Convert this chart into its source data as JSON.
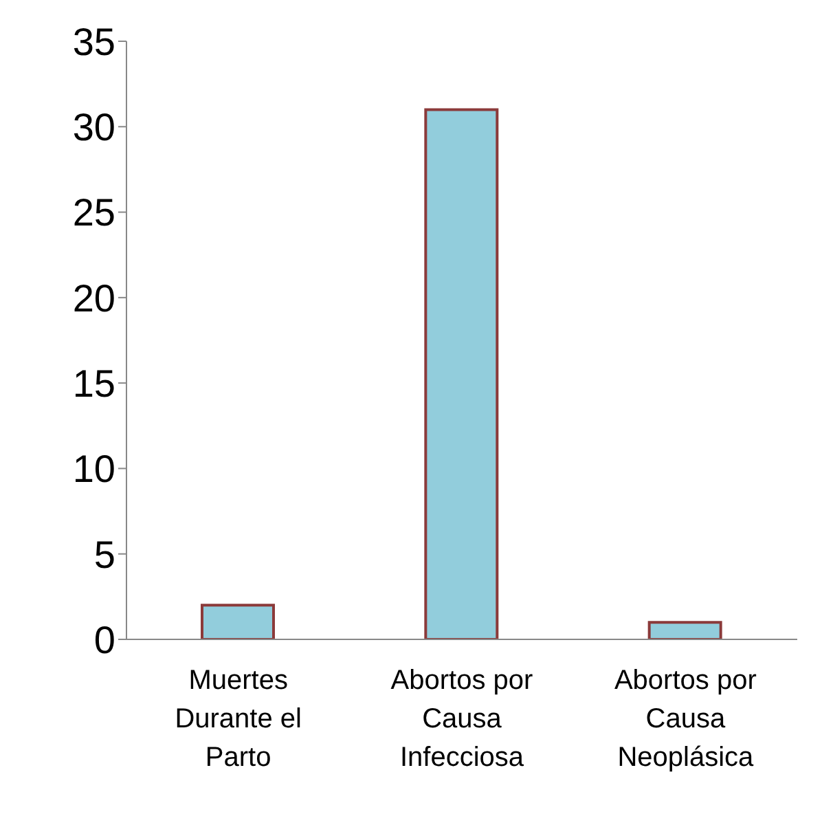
{
  "chart_data": {
    "type": "bar",
    "categories": [
      "Muertes Durante el Parto",
      "Abortos por Causa Infecciosa",
      "Abortos por Causa Neoplásica"
    ],
    "values": [
      2,
      31,
      1
    ],
    "color": "#92cddc",
    "ylim": [
      0,
      35
    ],
    "yticks": [
      0,
      5,
      10,
      15,
      20,
      25,
      30,
      35
    ],
    "grid": false,
    "legend": false
  }
}
